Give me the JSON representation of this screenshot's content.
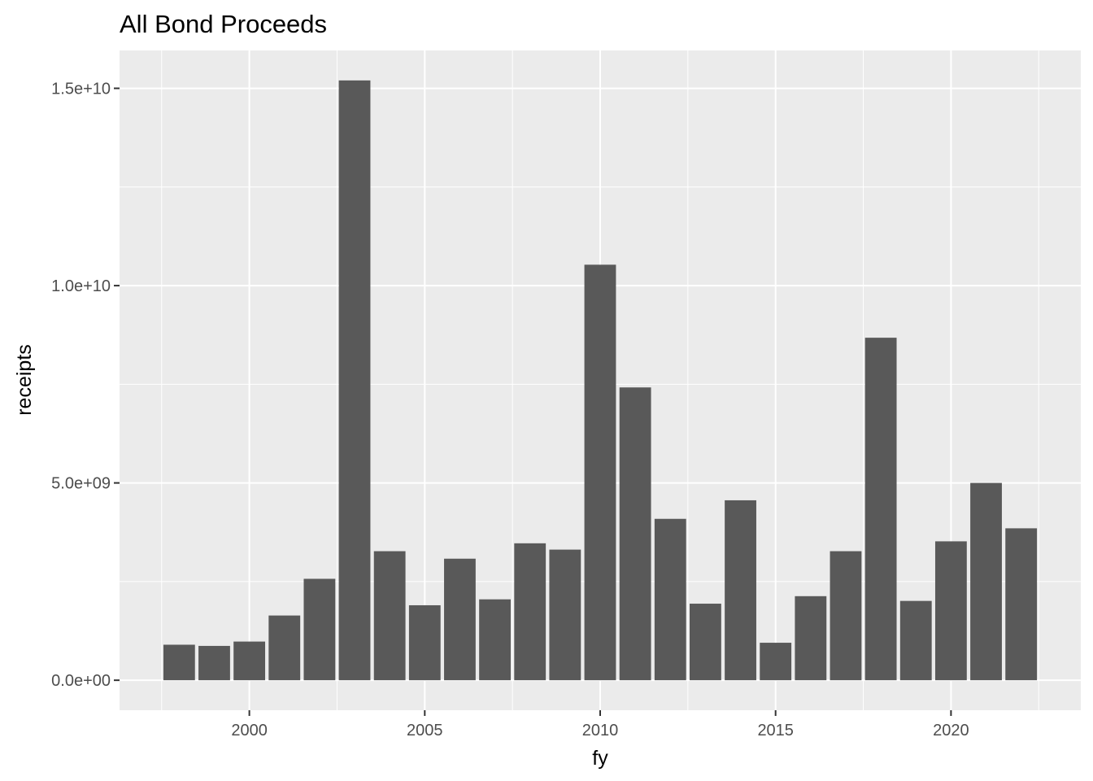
{
  "chart_data": {
    "type": "bar",
    "title": "All Bond Proceeds",
    "xlabel": "fy",
    "ylabel": "receipts",
    "categories": [
      1998,
      1999,
      2000,
      2001,
      2002,
      2003,
      2004,
      2005,
      2006,
      2007,
      2008,
      2009,
      2010,
      2011,
      2012,
      2013,
      2014,
      2015,
      2016,
      2017,
      2018,
      2019,
      2020,
      2021,
      2022
    ],
    "values": [
      900000000,
      870000000,
      980000000,
      1640000000,
      2570000000,
      15200000000,
      3270000000,
      1900000000,
      3080000000,
      2050000000,
      3470000000,
      3310000000,
      10530000000,
      7420000000,
      4090000000,
      1940000000,
      4560000000,
      950000000,
      2130000000,
      3270000000,
      8680000000,
      2010000000,
      3520000000,
      5000000000,
      3850000000
    ],
    "x_ticks": [
      2000,
      2005,
      2010,
      2015,
      2020
    ],
    "x_tick_labels": [
      "2000",
      "2005",
      "2010",
      "2015",
      "2020"
    ],
    "y_ticks": [
      0,
      5000000000,
      10000000000,
      15000000000
    ],
    "y_tick_labels": [
      "0.0e+00",
      "5.0e+09",
      "1.0e+10",
      "1.5e+10"
    ],
    "xlim": [
      1996.3,
      2023.7
    ],
    "ylim": [
      -760000000,
      15960000000
    ],
    "grid": true,
    "colors": {
      "bar": "#595959",
      "panel": "#ebebeb",
      "grid": "#ffffff"
    }
  }
}
